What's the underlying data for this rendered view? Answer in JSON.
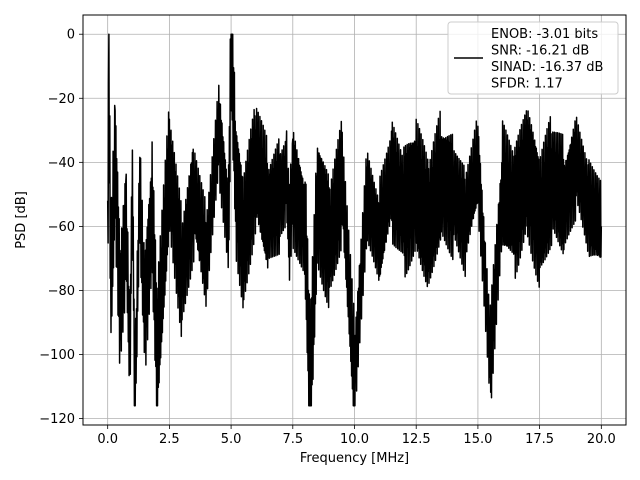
{
  "chart_data": {
    "type": "line",
    "title": "",
    "xlabel": "Frequency [MHz]",
    "ylabel": "PSD [dB]",
    "xlim": [
      -1.0,
      21.0
    ],
    "ylim": [
      -122,
      6
    ],
    "x_ticks": [
      0.0,
      2.5,
      5.0,
      7.5,
      10.0,
      12.5,
      15.0,
      17.5,
      20.0
    ],
    "x_tick_labels": [
      "0.0",
      "2.5",
      "5.0",
      "7.5",
      "10.0",
      "12.5",
      "15.0",
      "17.5",
      "20.0"
    ],
    "y_ticks": [
      0,
      -20,
      -40,
      -60,
      -80,
      -100,
      -120
    ],
    "y_tick_labels": [
      "0",
      "−20",
      "−40",
      "−60",
      "−80",
      "−100",
      "−120"
    ],
    "grid": true,
    "legend_position": "top-right",
    "series": [
      {
        "color": "#000000",
        "x": [
          0.0,
          0.05,
          0.12,
          0.3,
          0.5,
          0.75,
          0.9,
          1.0,
          1.1,
          1.3,
          1.5,
          1.8,
          2.0,
          2.5,
          3.0,
          3.5,
          4.0,
          4.5,
          4.9,
          5.0,
          5.2,
          5.5,
          6.0,
          6.5,
          7.0,
          7.25,
          7.35,
          7.5,
          8.0,
          8.2,
          8.5,
          9.0,
          9.5,
          10.0,
          10.5,
          11.0,
          11.5,
          12.0,
          12.5,
          13.0,
          13.5,
          14.0,
          14.5,
          15.0,
          15.5,
          16.0,
          16.5,
          17.0,
          17.5,
          18.0,
          18.5,
          19.0,
          19.5,
          20.0
        ],
        "y": [
          -66,
          -10,
          -80,
          -40,
          -85,
          -60,
          -102,
          -45,
          -115,
          -50,
          -88,
          -55,
          -100,
          -42,
          -75,
          -50,
          -70,
          -30,
          -60,
          0,
          -48,
          -65,
          -40,
          -55,
          -50,
          -45,
          -62,
          -47,
          -60,
          -110,
          -52,
          -65,
          -45,
          -107,
          -50,
          -63,
          -45,
          -55,
          -48,
          -60,
          -45,
          -50,
          -58,
          -40,
          -102,
          -48,
          -55,
          -42,
          -58,
          -45,
          -52,
          -40,
          -55,
          -60
        ]
      }
    ],
    "legend": [
      {
        "label": "ENOB: -3.01 bits"
      },
      {
        "label": "SNR: -16.21 dB"
      },
      {
        "label": "SINAD: -16.37 dB"
      },
      {
        "label": "SFDR: 1.17"
      }
    ]
  }
}
